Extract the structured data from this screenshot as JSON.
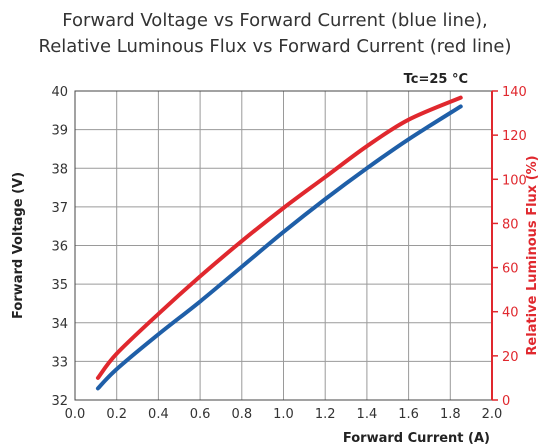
{
  "chart_data": {
    "type": "line",
    "title": "Forward Voltage vs Forward Current (blue line),",
    "subtitle": "Relative Luminous Flux vs Forward Current (red line)",
    "annotation": "Tc=25 °C",
    "xlabel": "Forward Current (A)",
    "ylabel_left": "Forward Voltage (V)",
    "ylabel_right": "Relative Luminous Flux (%)",
    "xlim": [
      0,
      2
    ],
    "ylim_left": [
      32,
      40
    ],
    "ylim_right": [
      0,
      140
    ],
    "x_ticks": [
      "0.0",
      "0.2",
      "0.4",
      "0.6",
      "0.8",
      "1.0",
      "1.2",
      "1.4",
      "1.6",
      "1.8",
      "2.0"
    ],
    "y_left_ticks": [
      "32",
      "33",
      "34",
      "35",
      "36",
      "37",
      "38",
      "39",
      "40"
    ],
    "y_right_ticks": [
      "0",
      "20",
      "40",
      "60",
      "80",
      "100",
      "120",
      "140"
    ],
    "grid": true,
    "series": [
      {
        "axis": "left",
        "color": "#1f5fa8",
        "x": [
          0.11,
          0.2,
          0.4,
          0.6,
          0.8,
          1.0,
          1.2,
          1.4,
          1.6,
          1.85
        ],
        "y": [
          32.3,
          32.8,
          33.7,
          34.55,
          35.45,
          36.35,
          37.2,
          38.0,
          38.75,
          39.6
        ]
      },
      {
        "axis": "right",
        "color": "#e0282e",
        "x": [
          0.11,
          0.2,
          0.4,
          0.6,
          0.8,
          1.0,
          1.2,
          1.4,
          1.6,
          1.85
        ],
        "y": [
          10,
          21,
          39,
          56,
          72,
          87,
          101,
          115,
          127,
          137
        ]
      }
    ]
  }
}
